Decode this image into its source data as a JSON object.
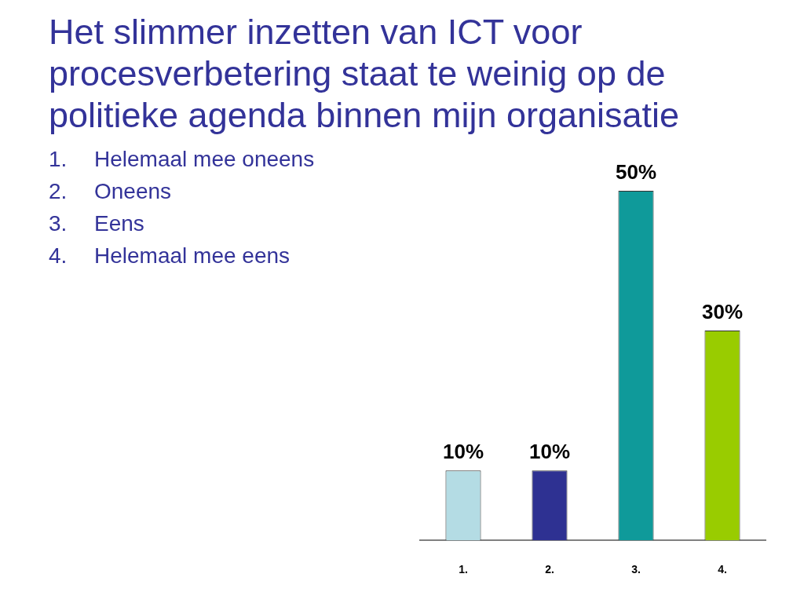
{
  "chart_data": {
    "type": "bar",
    "title": "Het slimmer inzetten van ICT voor procesverbetering staat te weinig op de politieke agenda binnen mijn organisatie",
    "annotations": [
      "1. Helemaal mee oneens",
      "2. Oneens",
      "3. Eens",
      "4. Helemaal mee eens"
    ],
    "categories": [
      "1.",
      "2.",
      "3.",
      "4."
    ],
    "values": [
      10,
      10,
      50,
      30
    ],
    "colors": [
      "#b4dce4",
      "#2e3192",
      "#0f9a9a",
      "#99cc00"
    ],
    "value_labels": [
      "10%",
      "10%",
      "50%",
      "30%"
    ]
  }
}
